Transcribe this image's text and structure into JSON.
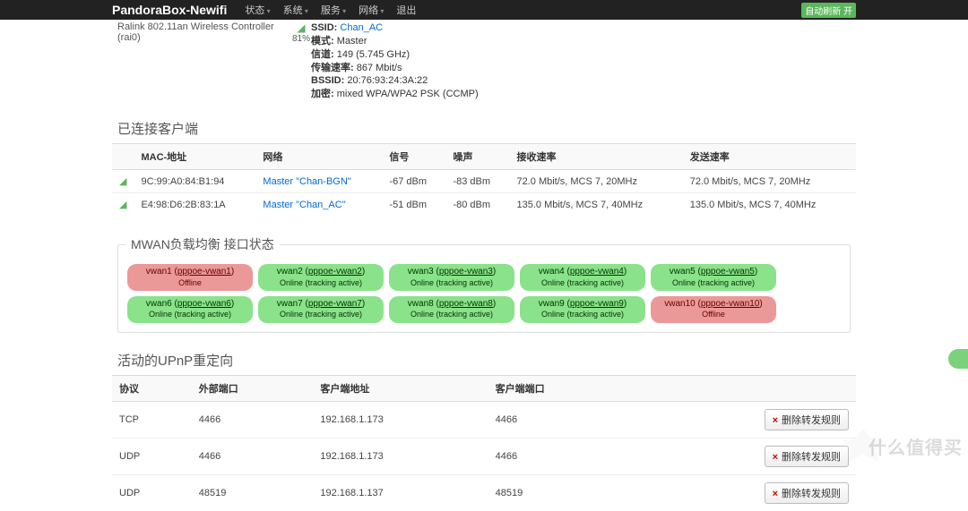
{
  "navbar": {
    "brand": "PandoraBox-Newifi",
    "items": [
      "状态",
      "系统",
      "服务",
      "网络"
    ],
    "logout": "退出",
    "autorefresh": "自动刷新 开"
  },
  "wireless": {
    "adapter": "Ralink 802.11an Wireless Controller (rai0)",
    "signal_pct": "81%",
    "ssid_label": "SSID:",
    "ssid": "Chan_AC",
    "mode_label": "模式:",
    "mode": "Master",
    "channel_label": "信道:",
    "channel": "149 (5.745 GHz)",
    "bitrate_label": "传输速率:",
    "bitrate": "867 Mbit/s",
    "bssid_label": "BSSID:",
    "bssid": "20:76:93:24:3A:22",
    "enc_label": "加密:",
    "enc": "mixed WPA/WPA2 PSK (CCMP)"
  },
  "clients": {
    "title": "已连接客户端",
    "headers": {
      "mac": "MAC-地址",
      "net": "网络",
      "signal": "信号",
      "noise": "噪声",
      "rx": "接收速率",
      "tx": "发送速率"
    },
    "rows": [
      {
        "mac": "9C:99:A0:84:B1:94",
        "net": "Master \"Chan-BGN\"",
        "signal": "-67 dBm",
        "noise": "-83 dBm",
        "rx": "72.0 Mbit/s, MCS 7, 20MHz",
        "tx": "72.0 Mbit/s, MCS 7, 20MHz"
      },
      {
        "mac": "E4:98:D6:2B:83:1A",
        "net": "Master \"Chan_AC\"",
        "signal": "-51 dBm",
        "noise": "-80 dBm",
        "rx": "135.0 Mbit/s, MCS 7, 40MHz",
        "tx": "135.0 Mbit/s, MCS 7, 40MHz"
      }
    ]
  },
  "mwan": {
    "title": "MWAN负载均衡 接口状态",
    "online_text": "Online (tracking active)",
    "offline_text": "Offline",
    "paren_open": " (",
    "paren_close": ")",
    "interfaces": [
      {
        "name": "vwan1",
        "link": "pppoe-vwan1",
        "online": false
      },
      {
        "name": "vwan2",
        "link": "pppoe-vwan2",
        "online": true
      },
      {
        "name": "vwan3",
        "link": "pppoe-vwan3",
        "online": true
      },
      {
        "name": "vwan4",
        "link": "pppoe-vwan4",
        "online": true
      },
      {
        "name": "vwan5",
        "link": "pppoe-vwan5",
        "online": true
      },
      {
        "name": "vwan6",
        "link": "pppoe-vwan6",
        "online": true
      },
      {
        "name": "vwan7",
        "link": "pppoe-vwan7",
        "online": true
      },
      {
        "name": "vwan8",
        "link": "pppoe-vwan8",
        "online": true
      },
      {
        "name": "vwan9",
        "link": "pppoe-vwan9",
        "online": true
      },
      {
        "name": "vwan10",
        "link": "pppoe-vwan10",
        "online": false
      }
    ]
  },
  "upnp": {
    "title": "活动的UPnP重定向",
    "headers": {
      "proto": "协议",
      "extport": "外部端口",
      "client": "客户端地址",
      "cliport": "客户端端口"
    },
    "delete_label": "删除转发规则",
    "rows": [
      {
        "proto": "TCP",
        "extport": "4466",
        "client": "192.168.1.173",
        "cliport": "4466"
      },
      {
        "proto": "UDP",
        "extport": "4466",
        "client": "192.168.1.173",
        "cliport": "4466"
      },
      {
        "proto": "UDP",
        "extport": "48519",
        "client": "192.168.1.137",
        "cliport": "48519"
      }
    ]
  },
  "watermark": "什么值得买"
}
